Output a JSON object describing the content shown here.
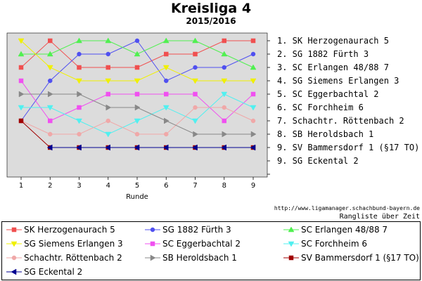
{
  "title": "Kreisliga 4",
  "subtitle": "2015/2016",
  "url_text": "http://www.ligamanager.schachbund-bayern.de",
  "footer_note": "Rangliste über Zeit",
  "chart_data": {
    "type": "line",
    "xlabel": "Runde",
    "ylabel": "",
    "x": [
      1,
      2,
      3,
      4,
      5,
      6,
      7,
      8,
      9
    ],
    "ylim": [
      1,
      11
    ],
    "y_inverted": true,
    "grid": false,
    "legend_position": "bottom",
    "series": [
      {
        "name": "SK Herzogenaurach 5",
        "color": "#f05050",
        "marker": "square",
        "values": [
          3,
          1,
          3,
          3,
          3,
          2,
          2,
          1,
          1
        ]
      },
      {
        "name": "SG 1882 Fürth 3",
        "color": "#5050f0",
        "marker": "circle",
        "values": [
          7,
          4,
          2,
          2,
          1,
          4,
          3,
          3,
          2
        ]
      },
      {
        "name": "SC Erlangen 48/88 7",
        "color": "#50f050",
        "marker": "triangle",
        "values": [
          2,
          2,
          1,
          1,
          2,
          1,
          1,
          2,
          3
        ]
      },
      {
        "name": "SG Siemens Erlangen 3",
        "color": "#f0f000",
        "marker": "triangle-down",
        "values": [
          1,
          3,
          4,
          4,
          4,
          3,
          4,
          4,
          4
        ]
      },
      {
        "name": "SC Eggerbachtal 2",
        "color": "#f050f0",
        "marker": "square",
        "values": [
          4,
          7,
          6,
          5,
          5,
          5,
          5,
          7,
          5
        ]
      },
      {
        "name": "SC Forchheim 6",
        "color": "#50f0f0",
        "marker": "triangle-down",
        "values": [
          6,
          6,
          7,
          8,
          7,
          6,
          7,
          5,
          6
        ]
      },
      {
        "name": "Schachtr. Röttenbach 2",
        "color": "#f0a8a8",
        "marker": "circle",
        "values": [
          7,
          8,
          8,
          7,
          8,
          8,
          6,
          6,
          7
        ]
      },
      {
        "name": "SB Heroldsbach 1",
        "color": "#888888",
        "marker": "triangle-right",
        "values": [
          5,
          5,
          5,
          6,
          6,
          7,
          8,
          8,
          8
        ]
      },
      {
        "name": "SV Bammersdorf 1 (§17 TO)",
        "color": "#a00000",
        "marker": "square",
        "values": [
          7,
          9,
          9,
          9,
          9,
          9,
          9,
          9,
          9
        ]
      },
      {
        "name": "SG Eckental 2",
        "color": "#000090",
        "marker": "triangle-left",
        "values": [
          null,
          9,
          9,
          9,
          9,
          9,
          9,
          9,
          9
        ]
      }
    ],
    "final_ranking": [
      "1. SK Herzogenaurach 5",
      "2. SG 1882 Fürth 3",
      "3. SC Erlangen 48/88 7",
      "4. SG Siemens Erlangen 3",
      "5. SC Eggerbachtal 2",
      "6. SC Forchheim 6",
      "7. Schachtr. Röttenbach 2",
      "8. SB Heroldsbach 1",
      "9. SV Bammersdorf 1 (§17 TO)",
      "9. SG Eckental 2"
    ]
  }
}
